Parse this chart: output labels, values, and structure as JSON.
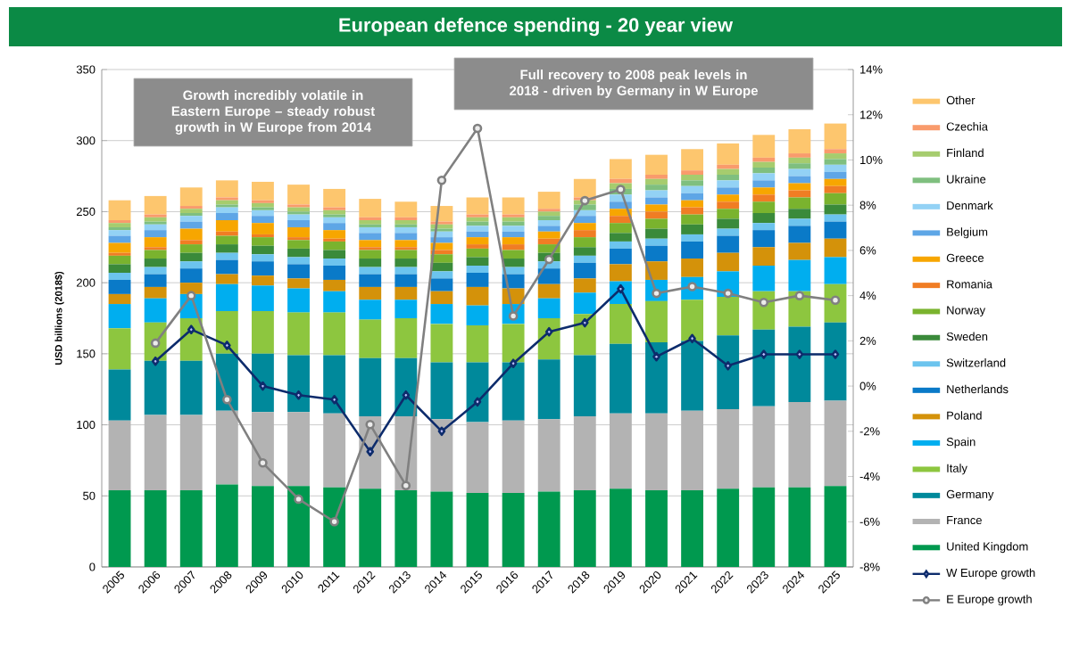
{
  "chart_data": {
    "type": "bar",
    "stacked": true,
    "title": "European defence spending - 20 year view",
    "ylabel": "USD billions (2018$)",
    "annotations": [
      "Growth incredibly volatile in Eastern Europe – steady robust growth in W Europe from 2014",
      "Full recovery to 2008 peak levels in 2018 - driven by Germany in W Europe"
    ],
    "categories": [
      "2005",
      "2006",
      "2007",
      "2008",
      "2009",
      "2010",
      "2011",
      "2012",
      "2013",
      "2014",
      "2015",
      "2016",
      "2017",
      "2018",
      "2019",
      "2020",
      "2021",
      "2022",
      "2023",
      "2024",
      "2025"
    ],
    "ylim": [
      0,
      350
    ],
    "yticks": [
      0,
      50,
      100,
      150,
      200,
      250,
      300,
      350
    ],
    "y2lim": [
      -8,
      14
    ],
    "y2ticks": [
      {
        "value": -8,
        "label": "-8%"
      },
      {
        "value": -6,
        "label": "-6%"
      },
      {
        "value": -4,
        "label": "-4%"
      },
      {
        "value": -2,
        "label": "-2%"
      },
      {
        "value": 0,
        "label": "0%"
      },
      {
        "value": 2,
        "label": "2%"
      },
      {
        "value": 4,
        "label": "4%"
      },
      {
        "value": 6,
        "label": "6%"
      },
      {
        "value": 8,
        "label": "8%"
      },
      {
        "value": 10,
        "label": "10%"
      },
      {
        "value": 12,
        "label": "12%"
      },
      {
        "value": 14,
        "label": "14%"
      }
    ],
    "grid": "y",
    "legend": "right",
    "series": [
      {
        "name": "United Kingdom",
        "color": "#00994f",
        "values": [
          54,
          54,
          54,
          58,
          57,
          57,
          56,
          55,
          54,
          53,
          52,
          52,
          53,
          54,
          55,
          54,
          54,
          55,
          56,
          56,
          57
        ]
      },
      {
        "name": "France",
        "color": "#b3b3b3",
        "values": [
          49,
          53,
          53,
          52,
          52,
          52,
          52,
          51,
          52,
          51,
          50,
          51,
          51,
          52,
          53,
          54,
          56,
          56,
          57,
          60,
          60
        ]
      },
      {
        "name": "Germany",
        "color": "#00899b",
        "values": [
          36,
          38,
          38,
          40,
          41,
          40,
          41,
          41,
          41,
          40,
          42,
          41,
          42,
          43,
          49,
          50,
          49,
          52,
          54,
          53,
          55
        ]
      },
      {
        "name": "Italy",
        "color": "#8dc63f",
        "values": [
          29,
          27,
          30,
          30,
          30,
          30,
          30,
          27,
          28,
          27,
          26,
          27,
          29,
          29,
          28,
          29,
          29,
          27,
          27,
          25,
          27
        ]
      },
      {
        "name": "Spain",
        "color": "#00aeef",
        "values": [
          17,
          17,
          17,
          19,
          18,
          17,
          15,
          14,
          13,
          14,
          14,
          14,
          14,
          15,
          16,
          15,
          16,
          18,
          18,
          22,
          19
        ]
      },
      {
        "name": "Poland",
        "color": "#d4920a",
        "values": [
          7,
          8,
          8,
          7,
          7,
          7,
          8,
          9,
          9,
          9,
          13,
          11,
          10,
          10,
          12,
          13,
          13,
          13,
          13,
          12,
          13
        ]
      },
      {
        "name": "Netherlands",
        "color": "#0a7ac8",
        "values": [
          10,
          9,
          10,
          10,
          10,
          10,
          10,
          9,
          9,
          9,
          10,
          10,
          11,
          11,
          11,
          11,
          12,
          12,
          12,
          12,
          12
        ]
      },
      {
        "name": "Switzerland",
        "color": "#6cc4ee",
        "values": [
          5,
          5,
          5,
          5,
          5,
          5,
          5,
          5,
          5,
          5,
          5,
          5,
          5,
          5,
          5,
          5,
          5,
          5,
          5,
          5,
          5
        ]
      },
      {
        "name": "Sweden",
        "color": "#3a8a3a",
        "values": [
          6,
          6,
          6,
          6,
          6,
          6,
          6,
          6,
          6,
          6,
          6,
          6,
          6,
          6,
          6,
          7,
          7,
          7,
          7,
          7,
          7
        ]
      },
      {
        "name": "Norway",
        "color": "#7ab32e",
        "values": [
          6,
          6,
          6,
          6,
          6,
          6,
          6,
          6,
          6,
          6,
          6,
          6,
          6,
          7,
          7,
          7,
          7,
          7,
          8,
          8,
          8
        ]
      },
      {
        "name": "Romania",
        "color": "#f07d24",
        "values": [
          2,
          2,
          3,
          3,
          2,
          2,
          2,
          2,
          2,
          3,
          3,
          4,
          4,
          5,
          5,
          5,
          5,
          5,
          5,
          5,
          5
        ]
      },
      {
        "name": "Greece",
        "color": "#f7a600",
        "values": [
          7,
          7,
          8,
          8,
          8,
          7,
          6,
          5,
          5,
          5,
          5,
          5,
          5,
          5,
          5,
          5,
          5,
          5,
          5,
          5,
          5
        ]
      },
      {
        "name": "Belgium",
        "color": "#5ea6e6",
        "values": [
          5,
          5,
          5,
          5,
          5,
          5,
          5,
          5,
          5,
          4,
          4,
          4,
          4,
          5,
          5,
          5,
          5,
          5,
          5,
          5,
          5
        ]
      },
      {
        "name": "Denmark",
        "color": "#93d2f5",
        "values": [
          4,
          4,
          4,
          4,
          4,
          4,
          4,
          4,
          4,
          4,
          4,
          4,
          4,
          4,
          5,
          5,
          5,
          5,
          5,
          5,
          5
        ]
      },
      {
        "name": "Ukraine",
        "color": "#7fbf7f",
        "values": [
          2,
          2,
          2,
          2,
          2,
          2,
          2,
          2,
          2,
          2,
          3,
          3,
          3,
          4,
          4,
          4,
          4,
          4,
          4,
          4,
          4
        ]
      },
      {
        "name": "Finland",
        "color": "#a6cc6e",
        "values": [
          3,
          3,
          3,
          3,
          3,
          3,
          3,
          3,
          3,
          3,
          3,
          3,
          3,
          3,
          4,
          4,
          4,
          4,
          4,
          4,
          4
        ]
      },
      {
        "name": "Czechia",
        "color": "#f99b6c",
        "values": [
          2,
          2,
          2,
          2,
          2,
          2,
          2,
          2,
          2,
          2,
          2,
          2,
          2,
          2,
          3,
          3,
          3,
          3,
          3,
          3,
          3
        ]
      },
      {
        "name": "Other",
        "color": "#fdc66e",
        "values": [
          14,
          13,
          13,
          12,
          13,
          14,
          13,
          13,
          11,
          11,
          12,
          12,
          12,
          13,
          14,
          14,
          15,
          15,
          16,
          17,
          18
        ]
      },
      {
        "name": "W Europe growth",
        "type": "line",
        "axis": "y2",
        "marker": "diamond",
        "color": "#0d2c6c",
        "values": [
          null,
          1.1,
          2.5,
          1.8,
          0.0,
          -0.4,
          -0.6,
          -2.9,
          -0.4,
          -2.0,
          -0.7,
          1.0,
          2.4,
          2.8,
          4.3,
          1.3,
          2.1,
          0.9,
          1.4,
          1.4,
          1.4
        ]
      },
      {
        "name": "E Europe growth",
        "type": "line",
        "axis": "y2",
        "marker": "circle",
        "color": "#808080",
        "values": [
          null,
          1.9,
          4.0,
          -0.6,
          -3.4,
          -5.0,
          -6.0,
          -1.7,
          -4.4,
          9.1,
          11.4,
          3.1,
          5.6,
          8.2,
          8.7,
          4.1,
          4.4,
          4.1,
          3.7,
          4.0,
          3.8
        ]
      }
    ]
  }
}
